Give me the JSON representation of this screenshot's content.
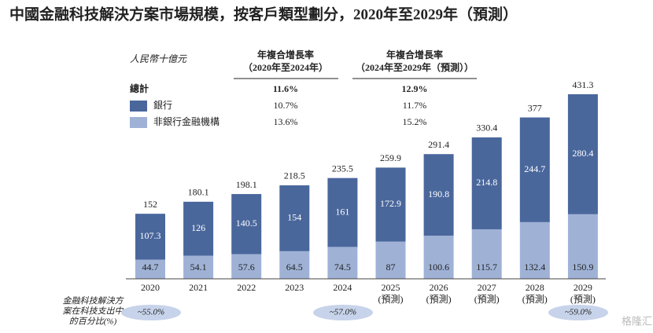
{
  "chart_data": {
    "type": "stacked-bar",
    "title": "中國金融科技解決方案市場規模，按客戶類型劃分，2020年至2029年（預測）",
    "unit_label": "人民幣十億元",
    "categories": [
      [
        "2020"
      ],
      [
        "2021"
      ],
      [
        "2022"
      ],
      [
        "2023"
      ],
      [
        "2024"
      ],
      [
        "2025",
        "(預測)"
      ],
      [
        "2026",
        "(預測)"
      ],
      [
        "2027",
        "(預測)"
      ],
      [
        "2028",
        "(預測)"
      ],
      [
        "2029",
        "(預測)"
      ]
    ],
    "series": [
      {
        "name": "非銀行金融機構",
        "color": "#9fb2d6",
        "values": [
          44.7,
          54.1,
          57.6,
          64.5,
          74.5,
          87.0,
          100.6,
          115.7,
          132.4,
          150.9
        ]
      },
      {
        "name": "銀行",
        "color": "#4a679c",
        "values": [
          107.3,
          126.0,
          140.5,
          154.0,
          161.0,
          172.9,
          190.8,
          214.8,
          244.7,
          280.4
        ]
      }
    ],
    "totals": [
      152.0,
      180.1,
      198.1,
      218.5,
      235.5,
      259.9,
      291.4,
      330.4,
      377.0,
      431.3
    ],
    "cagr_table": {
      "headers": [
        [
          "年複合增長率",
          "（2020年至2024年）"
        ],
        [
          "年複合增長率",
          "（2024年至2029年（預測））"
        ]
      ],
      "rows": [
        {
          "label": "總計",
          "values": [
            "11.6%",
            "12.9%"
          ]
        },
        {
          "label": "銀行",
          "values": [
            "10.7%",
            "11.7%"
          ]
        },
        {
          "label": "非銀行金融機構",
          "values": [
            "13.6%",
            "15.2%"
          ]
        }
      ]
    },
    "note_lines": [
      "金融科技解決方",
      "案在科技支出中",
      "的百分比(%)"
    ],
    "share_labels": [
      "~55.0%",
      "~57.0%",
      "~59.0%"
    ],
    "watermark": "格隆汇"
  }
}
